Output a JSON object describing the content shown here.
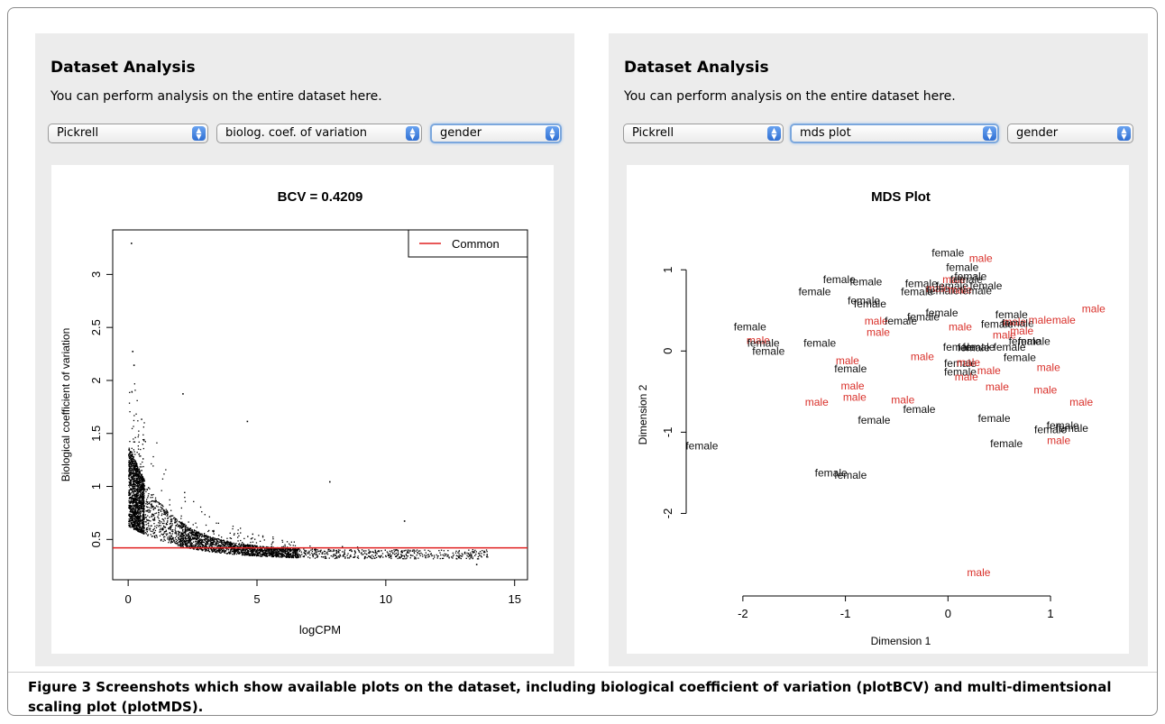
{
  "left_panel": {
    "title": "Dataset Analysis",
    "description": "You can perform analysis on the entire dataset here.",
    "selects": [
      "Pickrell",
      "biolog. coef. of variation",
      "gender"
    ],
    "focused_select": 2
  },
  "right_panel": {
    "title": "Dataset Analysis",
    "description": "You can perform analysis on the entire dataset here.",
    "selects": [
      "Pickrell",
      "mds plot",
      "gender"
    ],
    "focused_select": 1
  },
  "caption": {
    "lead": "Figure 3",
    "text": " Screenshots which show available plots on the dataset, including biological coefficient of variation (plotBCV) and multi-dimentsional scaling plot (plotMDS)."
  },
  "colors": {
    "common_line": "#e02020",
    "male_label": "#d9302a",
    "female_label": "#111111",
    "focus_ring": "#7ba7dd"
  },
  "chart_data": [
    {
      "type": "scatter",
      "title": "BCV = 0.4209",
      "xlabel": "logCPM",
      "ylabel": "Biological coefficient of variation",
      "xlim": [
        -0.6,
        15.5
      ],
      "ylim": [
        0.12,
        3.42
      ],
      "xticks": [
        0,
        5,
        10,
        15
      ],
      "yticks": [
        0.5,
        1.0,
        1.5,
        2.0,
        2.5,
        3.0
      ],
      "legend": {
        "position": "top-right",
        "entries": [
          {
            "name": "Common",
            "color": "#e02020"
          }
        ]
      },
      "common_bcv": 0.4209,
      "grid": false,
      "outliers": [
        {
          "x": 0.1,
          "y": 3.3
        },
        {
          "x": 0.15,
          "y": 2.28
        },
        {
          "x": 0.2,
          "y": 2.15
        },
        {
          "x": 2.1,
          "y": 1.88
        },
        {
          "x": 4.6,
          "y": 1.62
        },
        {
          "x": 7.8,
          "y": 1.05
        },
        {
          "x": 10.7,
          "y": 0.68
        },
        {
          "x": 13.5,
          "y": 0.27
        }
      ]
    },
    {
      "type": "scatter",
      "title": "MDS Plot",
      "xlabel": "Dimension 1",
      "ylabel": "Dimension 2",
      "xlim": [
        -2.5,
        1.58
      ],
      "ylim": [
        -2.95,
        1.38
      ],
      "xticks": [
        -2,
        -1,
        0,
        1
      ],
      "yticks": [
        -2,
        -1,
        0,
        1
      ],
      "grid": false,
      "points": [
        {
          "x": -2.4,
          "y": -1.17,
          "label": "female"
        },
        {
          "x": -1.93,
          "y": 0.3,
          "label": "female"
        },
        {
          "x": -1.85,
          "y": 0.13,
          "label": "male"
        },
        {
          "x": -1.8,
          "y": 0.1,
          "label": "female"
        },
        {
          "x": -1.75,
          "y": 0.0,
          "label": "female"
        },
        {
          "x": -1.3,
          "y": 0.73,
          "label": "female"
        },
        {
          "x": -1.25,
          "y": 0.1,
          "label": "female"
        },
        {
          "x": -1.06,
          "y": 0.88,
          "label": "female"
        },
        {
          "x": -0.98,
          "y": -0.12,
          "label": "male"
        },
        {
          "x": -0.95,
          "y": -0.22,
          "label": "female"
        },
        {
          "x": -0.93,
          "y": -0.43,
          "label": "male"
        },
        {
          "x": -0.91,
          "y": -0.57,
          "label": "male"
        },
        {
          "x": -1.28,
          "y": -0.63,
          "label": "male"
        },
        {
          "x": -0.8,
          "y": 0.85,
          "label": "female"
        },
        {
          "x": -0.82,
          "y": 0.62,
          "label": "female"
        },
        {
          "x": -0.76,
          "y": 0.58,
          "label": "female"
        },
        {
          "x": -0.7,
          "y": 0.37,
          "label": "male"
        },
        {
          "x": -0.68,
          "y": 0.23,
          "label": "male"
        },
        {
          "x": -0.72,
          "y": -0.85,
          "label": "female"
        },
        {
          "x": -1.14,
          "y": -1.5,
          "label": "female"
        },
        {
          "x": -0.95,
          "y": -1.53,
          "label": "female"
        },
        {
          "x": -0.46,
          "y": 0.37,
          "label": "female"
        },
        {
          "x": -0.44,
          "y": -0.6,
          "label": "male"
        },
        {
          "x": -0.25,
          "y": -0.07,
          "label": "male"
        },
        {
          "x": -0.3,
          "y": 0.73,
          "label": "female"
        },
        {
          "x": -0.28,
          "y": -0.72,
          "label": "female"
        },
        {
          "x": -0.24,
          "y": 0.42,
          "label": "female"
        },
        {
          "x": -0.26,
          "y": 0.83,
          "label": "female"
        },
        {
          "x": -0.1,
          "y": 0.77,
          "label": "male"
        },
        {
          "x": -0.06,
          "y": 0.47,
          "label": "female"
        },
        {
          "x": -0.05,
          "y": 0.74,
          "label": "female"
        },
        {
          "x": 0.0,
          "y": 1.21,
          "label": "female"
        },
        {
          "x": 0.04,
          "y": 0.8,
          "label": "female"
        },
        {
          "x": 0.06,
          "y": 0.88,
          "label": "male"
        },
        {
          "x": 0.12,
          "y": 0.75,
          "label": "male"
        },
        {
          "x": 0.12,
          "y": 0.3,
          "label": "male"
        },
        {
          "x": 0.11,
          "y": 0.05,
          "label": "female"
        },
        {
          "x": 0.12,
          "y": -0.15,
          "label": "female"
        },
        {
          "x": 0.12,
          "y": -0.26,
          "label": "female"
        },
        {
          "x": 0.14,
          "y": 1.03,
          "label": "female"
        },
        {
          "x": 0.18,
          "y": 0.88,
          "label": "female"
        },
        {
          "x": 0.18,
          "y": -0.32,
          "label": "male"
        },
        {
          "x": 0.2,
          "y": -0.14,
          "label": "male"
        },
        {
          "x": 0.22,
          "y": 0.92,
          "label": "female"
        },
        {
          "x": 0.25,
          "y": 0.04,
          "label": "female"
        },
        {
          "x": 0.27,
          "y": 0.74,
          "label": "female"
        },
        {
          "x": 0.32,
          "y": 1.14,
          "label": "male"
        },
        {
          "x": 0.3,
          "y": 0.05,
          "label": "female"
        },
        {
          "x": 0.37,
          "y": 0.8,
          "label": "female"
        },
        {
          "x": 0.4,
          "y": -0.24,
          "label": "male"
        },
        {
          "x": 0.45,
          "y": -0.83,
          "label": "female"
        },
        {
          "x": 0.48,
          "y": 0.33,
          "label": "female"
        },
        {
          "x": 0.48,
          "y": -0.44,
          "label": "male"
        },
        {
          "x": 0.55,
          "y": 0.2,
          "label": "male"
        },
        {
          "x": 0.57,
          "y": -1.14,
          "label": "female"
        },
        {
          "x": 0.6,
          "y": 0.05,
          "label": "female"
        },
        {
          "x": 0.62,
          "y": 0.45,
          "label": "female"
        },
        {
          "x": 0.65,
          "y": 0.36,
          "label": "male"
        },
        {
          "x": 0.68,
          "y": 0.34,
          "label": "female"
        },
        {
          "x": 0.7,
          "y": -0.08,
          "label": "female"
        },
        {
          "x": 0.72,
          "y": 0.25,
          "label": "male"
        },
        {
          "x": 0.75,
          "y": 0.12,
          "label": "female"
        },
        {
          "x": 0.84,
          "y": 0.12,
          "label": "female"
        },
        {
          "x": 0.9,
          "y": 0.38,
          "label": "male"
        },
        {
          "x": 0.98,
          "y": -0.2,
          "label": "male"
        },
        {
          "x": 0.95,
          "y": -0.48,
          "label": "male"
        },
        {
          "x": 1.0,
          "y": -0.97,
          "label": "female"
        },
        {
          "x": 1.08,
          "y": -1.1,
          "label": "male"
        },
        {
          "x": 1.13,
          "y": 0.38,
          "label": "male"
        },
        {
          "x": 1.12,
          "y": -0.92,
          "label": "female"
        },
        {
          "x": 1.21,
          "y": -0.95,
          "label": "female"
        },
        {
          "x": 1.3,
          "y": -0.63,
          "label": "male"
        },
        {
          "x": 1.42,
          "y": 0.52,
          "label": "male"
        },
        {
          "x": 0.3,
          "y": -2.73,
          "label": "male"
        }
      ]
    }
  ]
}
